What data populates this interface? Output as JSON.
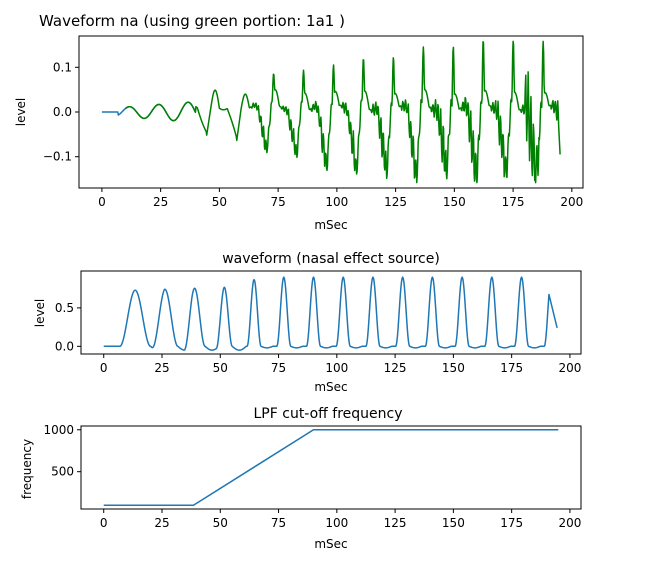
{
  "chart_data": [
    {
      "type": "line",
      "title": "Waveform na (using green portion: 1a1 )",
      "xlabel": "mSec",
      "ylabel": "level",
      "xlim": [
        -9.75,
        204.75
      ],
      "ylim": [
        -0.17,
        0.17
      ],
      "xticks": [
        0,
        25,
        50,
        75,
        100,
        125,
        150,
        175,
        200
      ],
      "yticks": [
        -0.1,
        0.0,
        0.1
      ],
      "ytick_labels": [
        "−0.1",
        "0.0",
        "0.1"
      ],
      "grid": false,
      "series": [
        {
          "color": "#1f77b4",
          "segment": "blue",
          "x_range": [
            0,
            40
          ]
        },
        {
          "color": "#008000",
          "segment": "green",
          "x_range": [
            10,
            195
          ]
        }
      ]
    },
    {
      "type": "line",
      "title": "waveform (nasal effect source)",
      "xlabel": "mSec",
      "ylabel": "level",
      "xlim": [
        -9.75,
        204.75
      ],
      "ylim": [
        -0.1,
        0.98
      ],
      "xticks": [
        0,
        25,
        50,
        75,
        100,
        125,
        150,
        175,
        200
      ],
      "yticks": [
        0.0,
        0.5
      ],
      "ytick_labels": [
        "0.0",
        "0.5"
      ],
      "grid": false,
      "series": [
        {
          "color": "#1f77b4"
        }
      ]
    },
    {
      "type": "line",
      "title": "LPF cut-off frequency",
      "xlabel": "mSec",
      "ylabel": "frequency",
      "xlim": [
        -9.75,
        204.75
      ],
      "ylim": [
        55,
        1045
      ],
      "xticks": [
        0,
        25,
        50,
        75,
        100,
        125,
        150,
        175,
        200
      ],
      "yticks": [
        500,
        1000
      ],
      "ytick_labels": [
        "500",
        "1000"
      ],
      "grid": false,
      "series": [
        {
          "color": "#1f77b4",
          "x": [
            0,
            38.5,
            90,
            195
          ],
          "y": [
            100,
            100,
            1000,
            1000
          ]
        }
      ]
    }
  ]
}
